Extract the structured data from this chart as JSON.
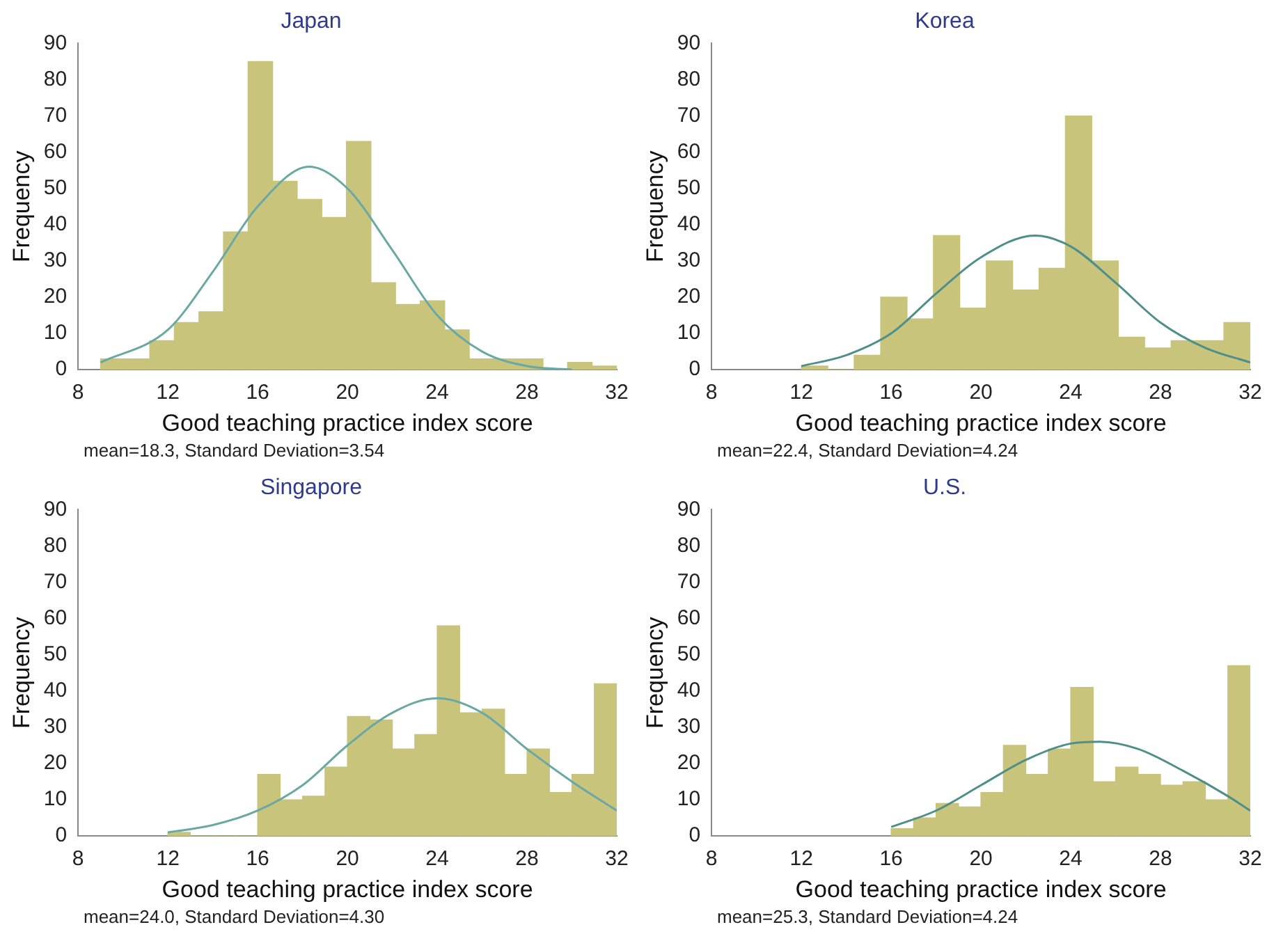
{
  "chart_data": [
    {
      "type": "histogram",
      "title": "Japan",
      "xlabel": "Good teaching practice index score",
      "ylabel": "Frequency",
      "annotations": [
        "mean=18.3, Standard Deviation=3.54"
      ],
      "xlim": [
        8,
        32
      ],
      "xticks": [
        8,
        12,
        16,
        20,
        24,
        28,
        32
      ],
      "ylim": [
        0,
        90
      ],
      "yticks": [
        0,
        10,
        20,
        30,
        40,
        50,
        60,
        70,
        80,
        90
      ],
      "grid": false,
      "legend": false,
      "series": [
        {
          "color": "#c9c47c",
          "bins": [
            9,
            10.1,
            11.19,
            12.29,
            13.38,
            14.48,
            15.57,
            16.67,
            17.76,
            18.86,
            19.95,
            21.05,
            22.14,
            23.24,
            24.33,
            25.43,
            26.52,
            27.62,
            28.71,
            29.81,
            30.9,
            32
          ],
          "values": [
            3,
            3,
            8,
            13,
            16,
            38,
            85,
            52,
            47,
            42,
            63,
            24,
            18,
            19,
            11,
            3,
            3,
            3,
            0,
            2,
            1
          ]
        },
        {
          "type": "line",
          "marker": "none",
          "color": "#6aa8a4",
          "x": [
            9,
            12,
            14,
            16,
            18.3,
            20,
            22,
            24,
            26,
            28,
            30
          ],
          "values": [
            2,
            11,
            27,
            45,
            56,
            50,
            33,
            15,
            5,
            1,
            0
          ]
        }
      ]
    },
    {
      "type": "histogram",
      "title": "Korea",
      "xlabel": "Good teaching practice index score",
      "ylabel": "Frequency",
      "annotations": [
        "mean=22.4, Standard Deviation=4.24"
      ],
      "xlim": [
        8,
        32
      ],
      "xticks": [
        8,
        12,
        16,
        20,
        24,
        28,
        32
      ],
      "ylim": [
        0,
        90
      ],
      "yticks": [
        0,
        10,
        20,
        30,
        40,
        50,
        60,
        70,
        80,
        90
      ],
      "grid": false,
      "legend": false,
      "series": [
        {
          "color": "#c9c47c",
          "bins": [
            12,
            13.18,
            14.35,
            15.53,
            16.71,
            17.88,
            19.06,
            20.24,
            21.41,
            22.59,
            23.76,
            24.94,
            26.12,
            27.29,
            28.47,
            29.65,
            30.82,
            32
          ],
          "values": [
            1,
            0,
            4,
            20,
            14,
            37,
            17,
            30,
            22,
            28,
            70,
            30,
            9,
            6,
            8,
            8,
            13
          ]
        },
        {
          "type": "line",
          "marker": "none",
          "color": "#4f8f8a",
          "x": [
            12,
            14,
            16,
            18,
            20,
            22.4,
            24,
            26,
            28,
            30,
            32
          ],
          "values": [
            1,
            4,
            10,
            21,
            31,
            37,
            34,
            24,
            13,
            6,
            2
          ]
        }
      ]
    },
    {
      "type": "histogram",
      "title": "Singapore",
      "xlabel": "Good teaching practice index score",
      "ylabel": "Frequency",
      "annotations": [
        "mean=24.0, Standard Deviation=4.30"
      ],
      "xlim": [
        8,
        32
      ],
      "xticks": [
        8,
        12,
        16,
        20,
        24,
        28,
        32
      ],
      "ylim": [
        0,
        90
      ],
      "yticks": [
        0,
        10,
        20,
        30,
        40,
        50,
        60,
        70,
        80,
        90
      ],
      "grid": false,
      "legend": false,
      "series": [
        {
          "color": "#c9c47c",
          "bins": [
            12,
            13,
            14,
            15,
            16,
            17,
            18,
            19,
            20,
            21,
            22,
            23,
            24,
            25,
            26,
            27,
            28,
            29,
            30,
            31,
            32
          ],
          "values": [
            1,
            0,
            0,
            0,
            17,
            10,
            11,
            19,
            33,
            32,
            24,
            28,
            58,
            34,
            35,
            17,
            24,
            12,
            17,
            42
          ]
        },
        {
          "type": "line",
          "marker": "none",
          "color": "#6aa8a4",
          "x": [
            12,
            14,
            16,
            18,
            20,
            22,
            24,
            26,
            28,
            30,
            32
          ],
          "values": [
            1,
            3,
            7,
            14,
            25,
            34,
            38,
            34,
            24,
            15,
            7
          ]
        }
      ]
    },
    {
      "type": "histogram",
      "title": "U.S.",
      "xlabel": "Good teaching practice index score",
      "ylabel": "Frequency",
      "annotations": [
        "mean=25.3, Standard Deviation=4.24"
      ],
      "xlim": [
        8,
        32
      ],
      "xticks": [
        8,
        12,
        16,
        20,
        24,
        28,
        32
      ],
      "ylim": [
        0,
        90
      ],
      "yticks": [
        0,
        10,
        20,
        30,
        40,
        50,
        60,
        70,
        80,
        90
      ],
      "grid": false,
      "legend": false,
      "series": [
        {
          "color": "#c9c47c",
          "bins": [
            16,
            17,
            18,
            19,
            20,
            21,
            22,
            23,
            24,
            25,
            26,
            27,
            28,
            29,
            30,
            31,
            32
          ],
          "values": [
            2,
            5,
            9,
            8,
            12,
            25,
            17,
            24,
            41,
            15,
            19,
            17,
            14,
            15,
            10,
            47
          ]
        },
        {
          "type": "line",
          "marker": "none",
          "color": "#4f8f8a",
          "x": [
            16,
            18,
            20,
            22,
            24,
            25.3,
            27,
            29,
            31,
            32
          ],
          "values": [
            2.5,
            7,
            14,
            21,
            25.5,
            26,
            24,
            18,
            11,
            7
          ]
        }
      ]
    }
  ]
}
